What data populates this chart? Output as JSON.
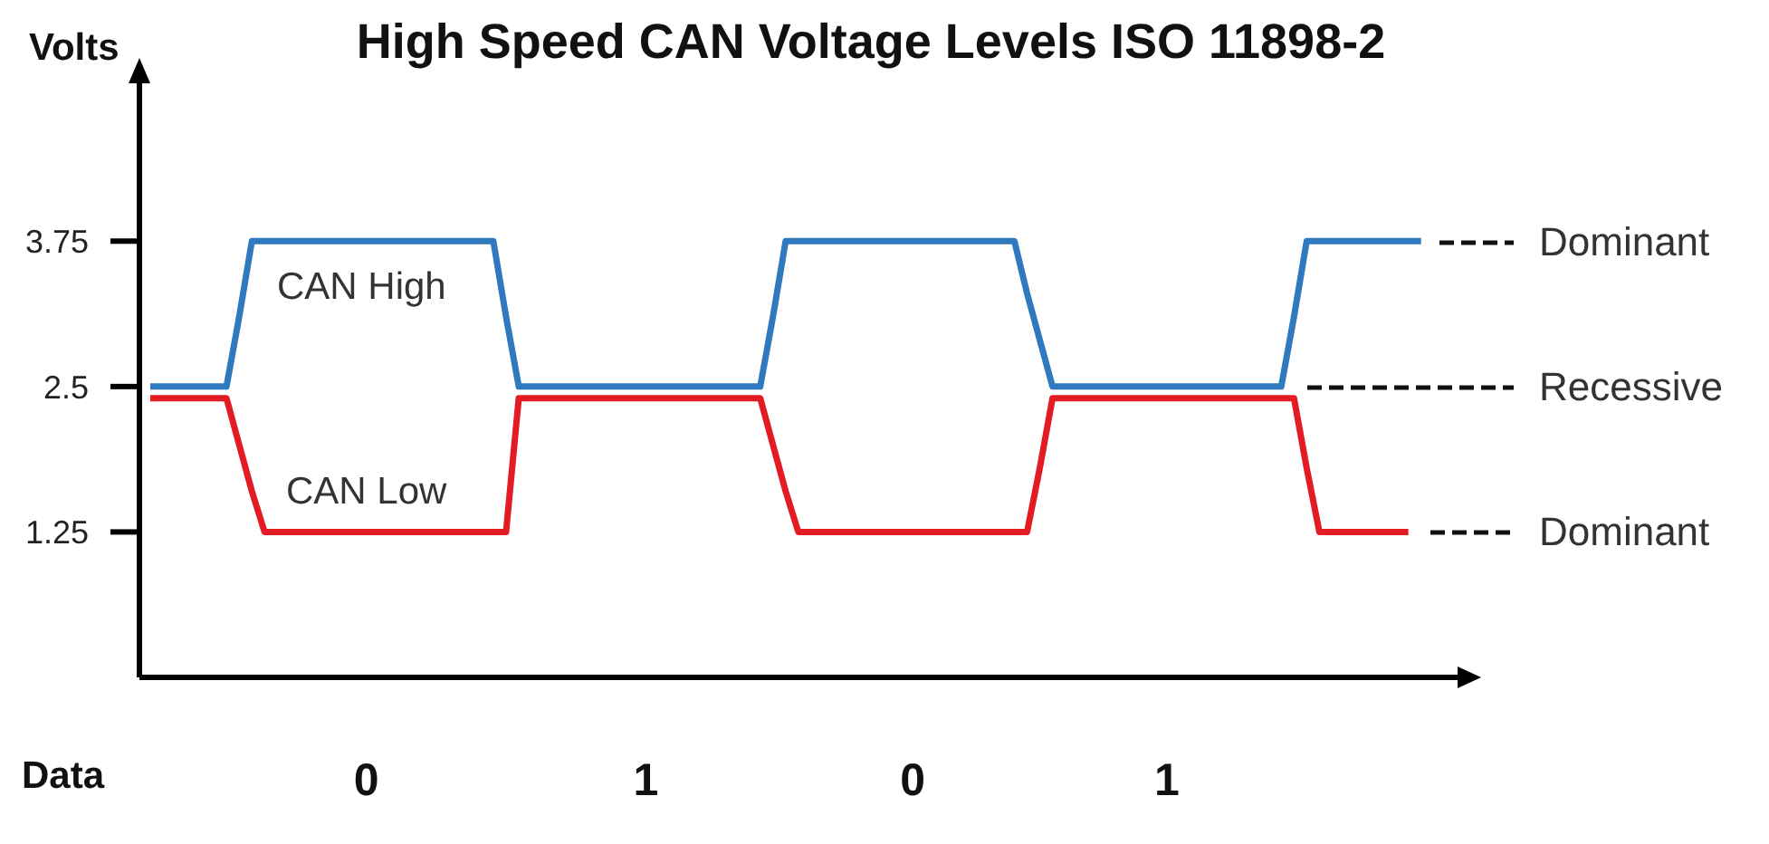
{
  "chart_data": {
    "type": "line",
    "title": "High Speed CAN Voltage Levels ISO 11898-2",
    "xlabel": "Data",
    "ylabel": "Volts",
    "categories": [
      null,
      null,
      null,
      null,
      null,
      null,
      null,
      null,
      null,
      null,
      null,
      null,
      null,
      null,
      null,
      null,
      null,
      "0",
      null,
      null,
      null,
      null,
      null,
      null,
      null,
      null,
      null,
      null,
      null,
      null,
      null,
      null,
      null,
      null,
      null,
      null,
      null,
      null,
      null,
      "1",
      null,
      null,
      null,
      null,
      null,
      null,
      null,
      null,
      null,
      null,
      null,
      null,
      null,
      null,
      null,
      null,
      null,
      null,
      null,
      null,
      "0",
      null,
      null,
      null,
      null,
      null,
      null,
      null,
      null,
      null,
      null,
      null,
      null,
      null,
      null,
      null,
      null,
      null,
      null,
      null,
      "1",
      null,
      null,
      null,
      null,
      null,
      null,
      null,
      null,
      null,
      null,
      null,
      null,
      null,
      null,
      null,
      null,
      null,
      null,
      null,
      null
    ],
    "series": [
      {
        "name": "CAN High",
        "color": "#2f7abf",
        "values": [
          2.5,
          2.5,
          2.5,
          2.5,
          2.5,
          2.5,
          2.5,
          3.1,
          3.75,
          3.75,
          3.75,
          3.75,
          3.75,
          3.75,
          3.75,
          3.75,
          3.75,
          3.75,
          3.75,
          3.75,
          3.75,
          3.75,
          3.75,
          3.75,
          3.75,
          3.75,
          3.75,
          3.75,
          3.1,
          2.5,
          2.5,
          2.5,
          2.5,
          2.5,
          2.5,
          2.5,
          2.5,
          2.5,
          2.5,
          2.5,
          2.5,
          2.5,
          2.5,
          2.5,
          2.5,
          2.5,
          2.5,
          2.5,
          2.5,
          3.1,
          3.75,
          3.75,
          3.75,
          3.75,
          3.75,
          3.75,
          3.75,
          3.75,
          3.75,
          3.75,
          3.75,
          3.75,
          3.75,
          3.75,
          3.75,
          3.75,
          3.75,
          3.75,
          3.75,
          3.3,
          2.9,
          2.5,
          2.5,
          2.5,
          2.5,
          2.5,
          2.5,
          2.5,
          2.5,
          2.5,
          2.5,
          2.5,
          2.5,
          2.5,
          2.5,
          2.5,
          2.5,
          2.5,
          2.5,
          2.5,
          3.1,
          3.75,
          3.75,
          3.75,
          3.75,
          3.75,
          3.75,
          3.75,
          3.75,
          3.75,
          3.75
        ]
      },
      {
        "name": "CAN Low",
        "color": "#e31b23",
        "values": [
          2.4,
          2.4,
          2.4,
          2.4,
          2.4,
          2.4,
          2.4,
          2,
          1.6,
          1.25,
          1.25,
          1.25,
          1.25,
          1.25,
          1.25,
          1.25,
          1.25,
          1.25,
          1.25,
          1.25,
          1.25,
          1.25,
          1.25,
          1.25,
          1.25,
          1.25,
          1.25,
          1.25,
          1.25,
          2.4,
          2.4,
          2.4,
          2.4,
          2.4,
          2.4,
          2.4,
          2.4,
          2.4,
          2.4,
          2.4,
          2.4,
          2.4,
          2.4,
          2.4,
          2.4,
          2.4,
          2.4,
          2.4,
          2.4,
          2,
          1.6,
          1.25,
          1.25,
          1.25,
          1.25,
          1.25,
          1.25,
          1.25,
          1.25,
          1.25,
          1.25,
          1.25,
          1.25,
          1.25,
          1.25,
          1.25,
          1.25,
          1.25,
          1.25,
          1.25,
          1.8,
          2.4,
          2.4,
          2.4,
          2.4,
          2.4,
          2.4,
          2.4,
          2.4,
          2.4,
          2.4,
          2.4,
          2.4,
          2.4,
          2.4,
          2.4,
          2.4,
          2.4,
          2.4,
          2.4,
          2.4,
          1.8,
          1.25,
          1.25,
          1.25,
          1.25,
          1.25,
          1.25,
          1.25,
          1.25,
          null
        ]
      }
    ],
    "ylim": [
      0,
      5.2
    ],
    "yticks": [
      1.25,
      2.5,
      3.75
    ],
    "annotations": [
      "Dominant",
      "Recessive",
      "Dominant"
    ]
  }
}
